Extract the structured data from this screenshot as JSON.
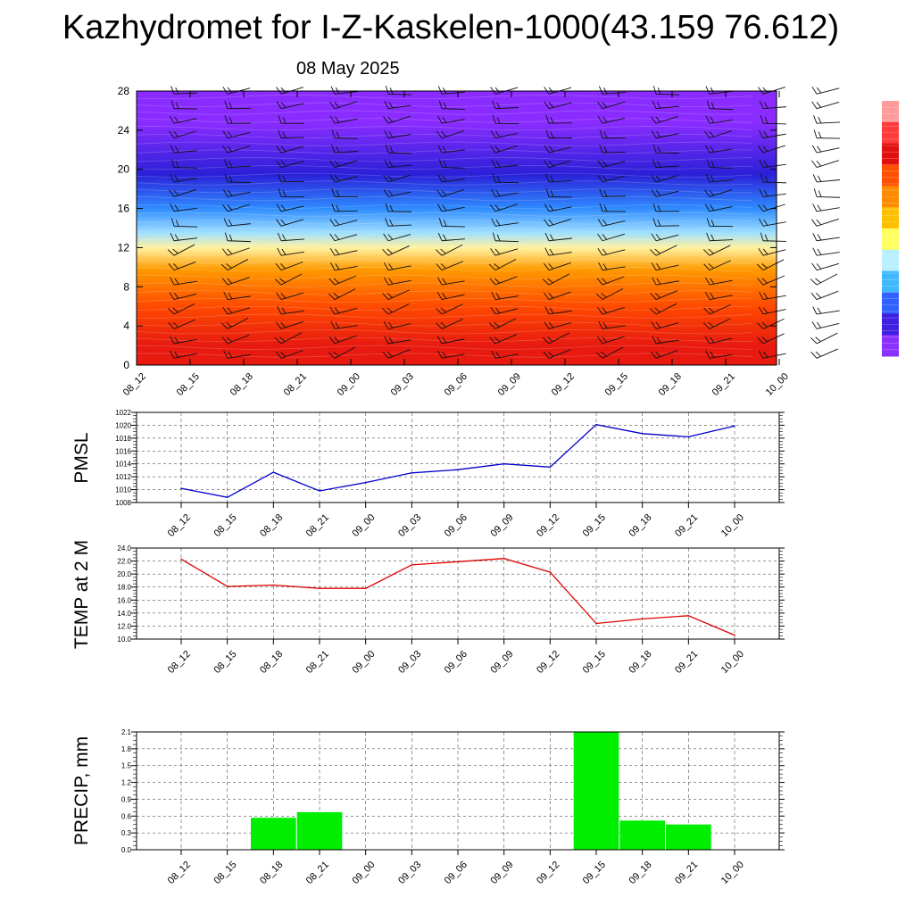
{
  "header": {
    "title": "Kazhydromet for I-Z-Kaskelen-1000(43.159 76.612)",
    "date": "08 May 2025"
  },
  "colorbar": {
    "colors": [
      "#ff9a9a",
      "#ff3a3a",
      "#e01010",
      "#ff5000",
      "#ff8c00",
      "#ffc000",
      "#ffff60",
      "#b8f0ff",
      "#40b8ff",
      "#3060ff",
      "#4020e0",
      "#8a30ff"
    ]
  },
  "chart_data": [
    {
      "type": "heatmap",
      "title": "",
      "xlabel": "",
      "ylabel": "",
      "ylim": [
        0,
        28
      ],
      "yticks": [
        "0",
        "4",
        "8",
        "12",
        "16",
        "20",
        "24",
        "28"
      ],
      "x": [
        "08_12",
        "08_15",
        "08_18",
        "08_21",
        "09_00",
        "09_03",
        "09_06",
        "09_09",
        "09_12",
        "09_15",
        "09_18",
        "09_21",
        "10_00"
      ],
      "colormap": "red (bottom) to yellow, light blue, blue, violet (top)",
      "bands": [
        {
          "from": 0,
          "to": 4,
          "color": "#e81a10"
        },
        {
          "from": 4,
          "to": 8,
          "color": "#ff4a00"
        },
        {
          "from": 8,
          "to": 11.5,
          "color": "#ff9a00"
        },
        {
          "from": 11.5,
          "to": 12.5,
          "color": "#fff2a0"
        },
        {
          "from": 12.5,
          "to": 14.5,
          "color": "#a0e0ff"
        },
        {
          "from": 14.5,
          "to": 17.5,
          "color": "#2f8cff"
        },
        {
          "from": 17.5,
          "to": 21.5,
          "color": "#2a20d8"
        },
        {
          "from": 21.5,
          "to": 28,
          "color": "#8a2cff"
        }
      ],
      "overlay": "wind barbs"
    },
    {
      "type": "line",
      "ylabel": "PMSL",
      "ylim": [
        1008,
        1022
      ],
      "yticks": [
        "1008",
        "1010",
        "1012",
        "1014",
        "1016",
        "1018",
        "1020",
        "1022"
      ],
      "x": [
        "08_12",
        "08_15",
        "08_18",
        "08_21",
        "09_00",
        "09_03",
        "09_06",
        "09_09",
        "09_12",
        "09_15",
        "09_18",
        "09_21",
        "10_00"
      ],
      "series": [
        {
          "values": [
            1010.2,
            1008.8,
            1012.7,
            1009.8,
            1011.1,
            1012.6,
            1013.1,
            1014.0,
            1013.5,
            1020.1,
            1018.7,
            1018.2,
            1019.9
          ],
          "color": "#0000cc"
        }
      ],
      "grid": true
    },
    {
      "type": "line",
      "ylabel": "TEMP at 2 M",
      "ylim": [
        10,
        24
      ],
      "yticks": [
        "10.0",
        "12.0",
        "14.0",
        "16.0",
        "18.0",
        "20.0",
        "22.0",
        "24.0"
      ],
      "x": [
        "08_12",
        "08_15",
        "08_18",
        "08_21",
        "09_00",
        "09_03",
        "09_06",
        "09_09",
        "09_12",
        "09_15",
        "09_18",
        "09_21",
        "10_00"
      ],
      "series": [
        {
          "values": [
            22.3,
            18.1,
            18.3,
            17.8,
            17.8,
            21.4,
            21.9,
            22.4,
            20.3,
            12.4,
            13.1,
            13.6,
            10.6
          ],
          "color": "#dd0000"
        }
      ],
      "grid": true
    },
    {
      "type": "bar",
      "ylabel": "PRECIP, mm",
      "ylim": [
        0,
        2.1
      ],
      "yticks": [
        "0.0",
        "0.3",
        "0.6",
        "0.9",
        "1.2",
        "1.5",
        "1.8",
        "2.1"
      ],
      "x": [
        "08_12",
        "08_15",
        "08_18",
        "08_21",
        "09_00",
        "09_03",
        "09_06",
        "09_09",
        "09_12",
        "09_15",
        "09_18",
        "09_21",
        "10_00"
      ],
      "values": [
        0,
        0,
        0.57,
        0.67,
        0,
        0,
        0,
        0,
        0,
        2.1,
        0.52,
        0.45,
        0
      ],
      "color": "#00ee00",
      "grid": true
    }
  ]
}
